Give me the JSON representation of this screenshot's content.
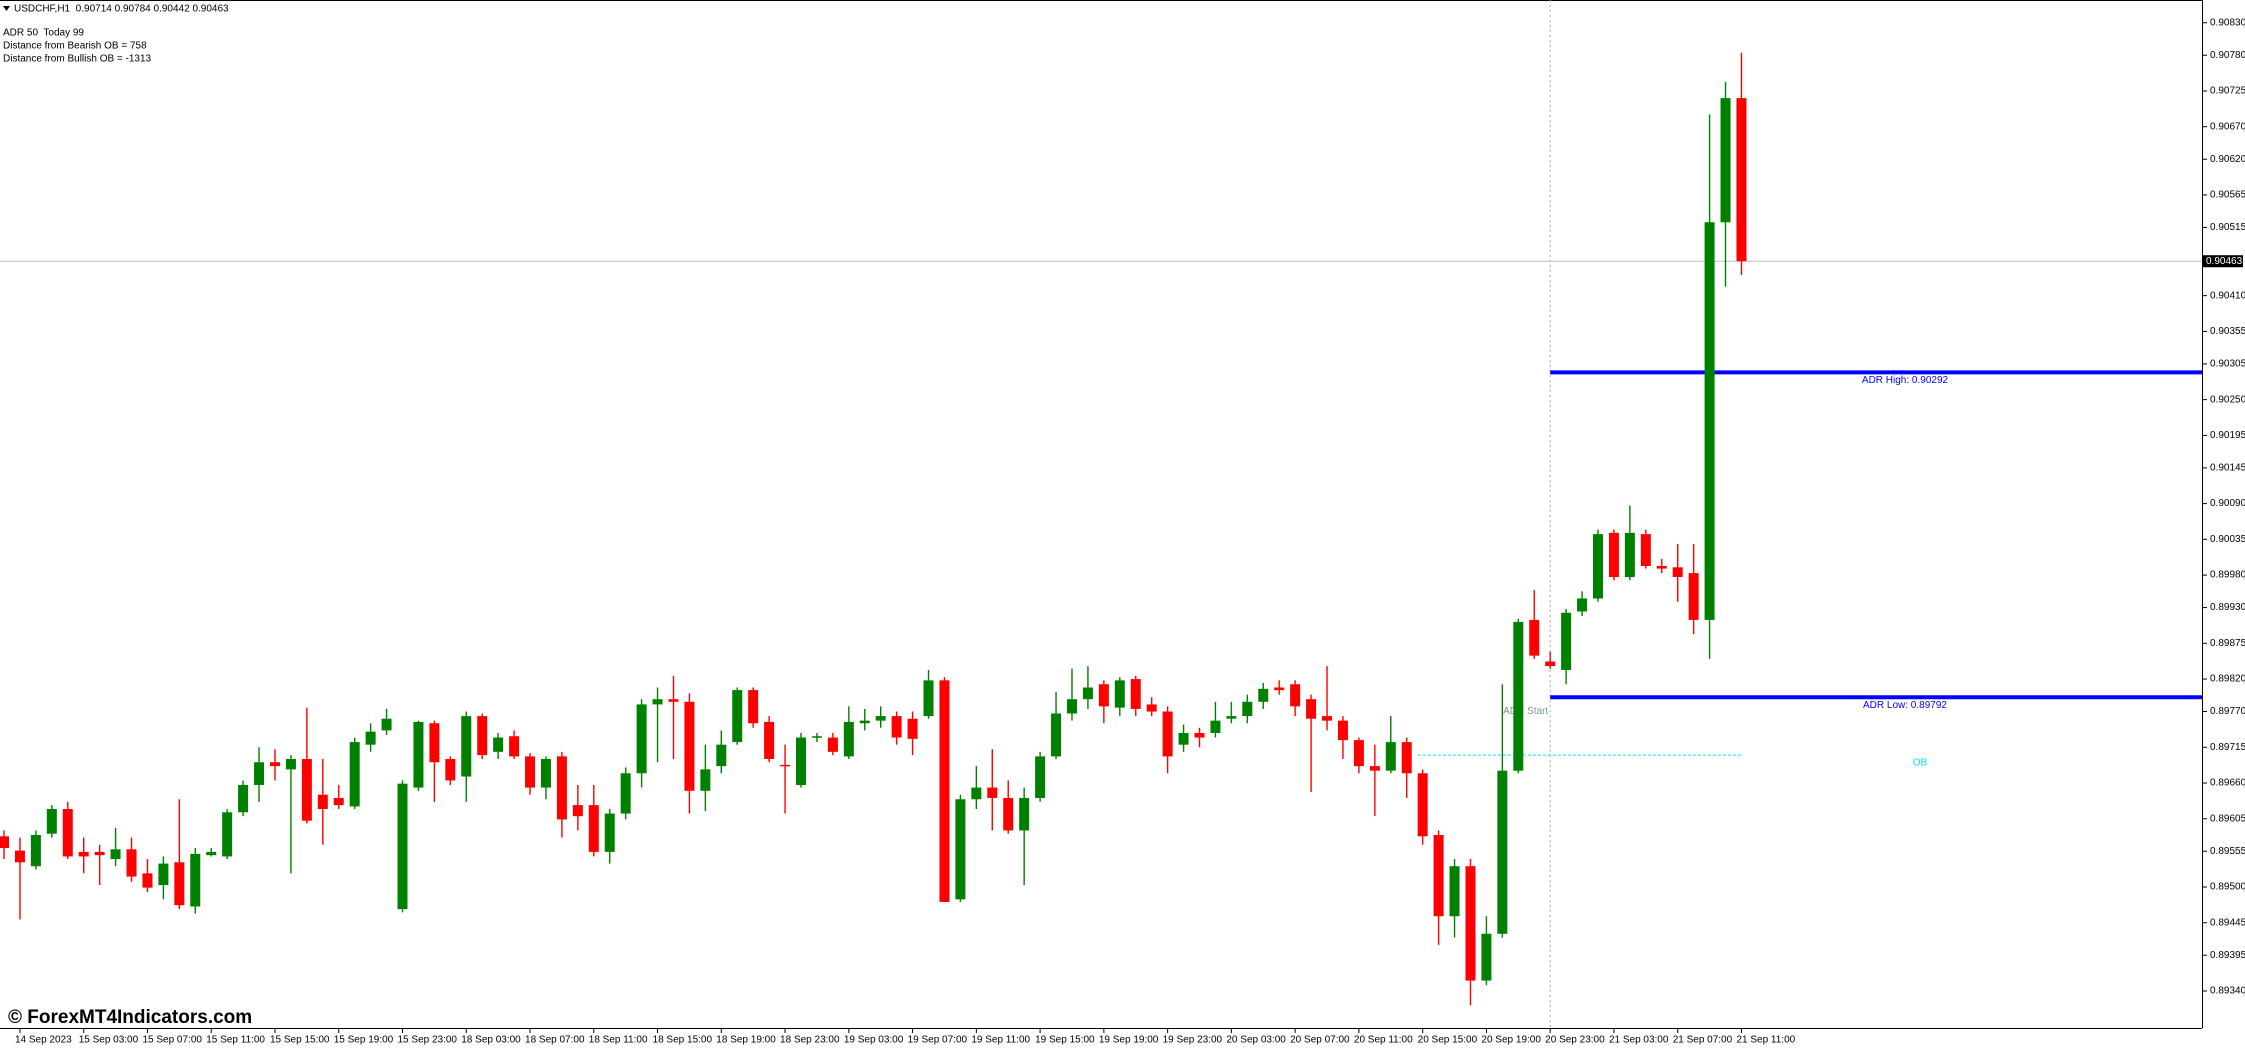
{
  "chart_data": {
    "type": "candlestick",
    "title": "USDCHF,H1  0.90714 0.90784 0.90442 0.90463",
    "annotations": [
      "ADR 50  Today 99",
      "Distance from Bearish OB = 758",
      "Distance from Bullish OB = -1313"
    ],
    "watermark": "© ForexMT4Indicators.com",
    "categories": [
      null,
      "14 Sep 2023",
      null,
      null,
      null,
      "15 Sep 03:00",
      null,
      null,
      null,
      "15 Sep 07:00",
      null,
      null,
      null,
      "15 Sep 11:00",
      null,
      null,
      null,
      "15 Sep 15:00",
      null,
      null,
      null,
      "15 Sep 19:00",
      null,
      null,
      null,
      "15 Sep 23:00",
      null,
      null,
      null,
      "18 Sep 03:00",
      null,
      null,
      null,
      "18 Sep 07:00",
      null,
      null,
      null,
      "18 Sep 11:00",
      null,
      null,
      null,
      "18 Sep 15:00",
      null,
      null,
      null,
      "18 Sep 19:00",
      null,
      null,
      null,
      "18 Sep 23:00",
      null,
      null,
      null,
      "19 Sep 03:00",
      null,
      null,
      null,
      "19 Sep 07:00",
      null,
      null,
      null,
      "19 Sep 11:00",
      null,
      null,
      null,
      "19 Sep 15:00",
      null,
      null,
      null,
      "19 Sep 19:00",
      null,
      null,
      null,
      "19 Sep 23:00",
      null,
      null,
      null,
      "20 Sep 03:00",
      null,
      null,
      null,
      "20 Sep 07:00",
      null,
      null,
      null,
      "20 Sep 11:00",
      null,
      null,
      null,
      "20 Sep 15:00",
      null,
      null,
      null,
      "20 Sep 19:00",
      null,
      null,
      null,
      "20 Sep 23:00",
      null,
      null,
      null,
      "21 Sep 03:00",
      null,
      null,
      null,
      "21 Sep 07:00",
      null,
      null,
      null,
      "21 Sep 11:00"
    ],
    "open": [
      0.89578,
      0.89556,
      0.89532,
      0.89582,
      0.8962,
      0.89554,
      0.89554,
      0.89543,
      0.89558,
      0.89521,
      0.89503,
      0.89538,
      0.8947,
      0.89549,
      0.89547,
      0.89615,
      0.89657,
      0.89692,
      0.89681,
      0.89697,
      0.89642,
      0.89637,
      0.89624,
      0.89719,
      0.89741,
      0.89466,
      0.89653,
      0.89752,
      0.89697,
      0.8967,
      0.89763,
      0.89708,
      0.89732,
      0.89701,
      0.89653,
      0.89701,
      0.89626,
      0.89626,
      0.89554,
      0.89613,
      0.89675,
      0.89781,
      0.89789,
      0.89785,
      0.89648,
      0.89686,
      0.89723,
      0.89803,
      0.89754,
      0.89688,
      0.89657,
      0.8973,
      0.8973,
      0.89701,
      0.89752,
      0.89756,
      0.89763,
      0.89759,
      0.89763,
      0.89818,
      0.89481,
      0.89635,
      0.89653,
      0.89637,
      0.89587,
      0.89637,
      0.89701,
      0.89767,
      0.89789,
      0.89812,
      0.89776,
      0.8982,
      0.89781,
      0.8977,
      0.89719,
      0.89737,
      0.89737,
      0.89759,
      0.89763,
      0.89785,
      0.89807,
      0.89812,
      0.89789,
      0.89763,
      0.89756,
      0.89726,
      0.89686,
      0.89679,
      0.89723,
      0.89675,
      0.8958,
      0.89455,
      0.89532,
      0.89356,
      0.89428,
      0.89679,
      0.89911,
      0.89847,
      0.89834,
      0.89924,
      0.89944,
      0.90045,
      0.89977,
      0.90043,
      0.89994,
      0.89992,
      0.89983,
      0.89911,
      0.90523,
      0.90714
    ],
    "high": [
      0.89587,
      0.89576,
      0.89587,
      0.89626,
      0.89631,
      0.89576,
      0.89565,
      0.89591,
      0.89576,
      0.89543,
      0.89547,
      0.89635,
      0.8956,
      0.8956,
      0.8962,
      0.89664,
      0.89715,
      0.89712,
      0.89703,
      0.89776,
      0.89697,
      0.89657,
      0.8973,
      0.89752,
      0.89774,
      0.89664,
      0.89756,
      0.89756,
      0.89701,
      0.8977,
      0.89767,
      0.89737,
      0.89741,
      0.89706,
      0.89701,
      0.89708,
      0.89657,
      0.89657,
      0.8962,
      0.89684,
      0.89789,
      0.89807,
      0.89825,
      0.89798,
      0.89719,
      0.89741,
      0.89807,
      0.89807,
      0.89763,
      0.89719,
      0.89737,
      0.89737,
      0.89737,
      0.89778,
      0.89774,
      0.89778,
      0.8977,
      0.8977,
      0.89834,
      0.89823,
      0.89642,
      0.89686,
      0.89712,
      0.89664,
      0.89653,
      0.89708,
      0.898,
      0.89836,
      0.8984,
      0.89818,
      0.89823,
      0.89825,
      0.89792,
      0.89778,
      0.8975,
      0.89745,
      0.89785,
      0.89785,
      0.89796,
      0.89814,
      0.89818,
      0.89818,
      0.89796,
      0.8984,
      0.89763,
      0.8973,
      0.89719,
      0.89763,
      0.8973,
      0.89681,
      0.89587,
      0.89543,
      0.89543,
      0.89455,
      0.89812,
      0.89913,
      0.89957,
      0.89862,
      0.89928,
      0.89955,
      0.9005,
      0.9005,
      0.90087,
      0.9005,
      0.90005,
      0.90028,
      0.90028,
      0.90689,
      0.90739,
      0.90784
    ],
    "low": [
      0.89543,
      0.8945,
      0.89527,
      0.89576,
      0.89543,
      0.89521,
      0.89503,
      0.89532,
      0.89508,
      0.89492,
      0.89481,
      0.89466,
      0.89459,
      0.89547,
      0.89543,
      0.89609,
      0.89631,
      0.89664,
      0.89521,
      0.89598,
      0.89565,
      0.8962,
      0.8962,
      0.89708,
      0.89734,
      0.89461,
      0.89648,
      0.89631,
      0.89657,
      0.89631,
      0.89697,
      0.89697,
      0.89697,
      0.89642,
      0.89635,
      0.89576,
      0.89587,
      0.89547,
      0.89536,
      0.89604,
      0.89653,
      0.89692,
      0.89697,
      0.89613,
      0.89617,
      0.89675,
      0.89719,
      0.89745,
      0.89692,
      0.89613,
      0.89653,
      0.89723,
      0.89703,
      0.89697,
      0.89741,
      0.89745,
      0.89719,
      0.89703,
      0.89759,
      0.89477,
      0.89477,
      0.8962,
      0.89587,
      0.89582,
      0.89503,
      0.89631,
      0.89697,
      0.89756,
      0.89774,
      0.89752,
      0.89763,
      0.89763,
      0.89763,
      0.89675,
      0.89708,
      0.89715,
      0.8973,
      0.89752,
      0.89752,
      0.89774,
      0.89796,
      0.89763,
      0.89646,
      0.89741,
      0.89697,
      0.89675,
      0.89609,
      0.89675,
      0.89637,
      0.89565,
      0.89411,
      0.89422,
      0.89318,
      0.89349,
      0.89422,
      0.89675,
      0.89851,
      0.89836,
      0.89812,
      0.89917,
      0.89939,
      0.89972,
      0.89972,
      0.8999,
      0.89983,
      0.89939,
      0.89889,
      0.89851,
      0.90424,
      0.90442
    ],
    "close": [
      0.8956,
      0.89538,
      0.8958,
      0.8962,
      0.89547,
      0.89547,
      0.89549,
      0.89558,
      0.89516,
      0.89499,
      0.89536,
      0.89472,
      0.89551,
      0.89554,
      0.89615,
      0.89657,
      0.89692,
      0.89686,
      0.89697,
      0.89602,
      0.8962,
      0.89626,
      0.89723,
      0.89739,
      0.89759,
      0.89659,
      0.89754,
      0.89692,
      0.89664,
      0.89763,
      0.89703,
      0.8973,
      0.89701,
      0.89653,
      0.89697,
      0.89604,
      0.89609,
      0.89554,
      0.89613,
      0.89675,
      0.89781,
      0.89789,
      0.89785,
      0.89648,
      0.89681,
      0.89719,
      0.89803,
      0.89752,
      0.89697,
      0.89686,
      0.8973,
      0.89732,
      0.89708,
      0.89754,
      0.89756,
      0.89763,
      0.8973,
      0.89728,
      0.89818,
      0.89477,
      0.89635,
      0.89653,
      0.89637,
      0.89587,
      0.89637,
      0.89701,
      0.89767,
      0.89789,
      0.89807,
      0.89778,
      0.89818,
      0.89774,
      0.8977,
      0.89701,
      0.89737,
      0.8973,
      0.89756,
      0.89763,
      0.89785,
      0.89805,
      0.89803,
      0.89778,
      0.89759,
      0.89756,
      0.89726,
      0.89686,
      0.89679,
      0.89723,
      0.89675,
      0.89578,
      0.89455,
      0.89532,
      0.89356,
      0.89428,
      0.89679,
      0.89908,
      0.89856,
      0.8984,
      0.89922,
      0.89944,
      0.90043,
      0.89977,
      0.90045,
      0.89994,
      0.8999,
      0.89977,
      0.89911,
      0.90523,
      0.90714,
      0.90463
    ],
    "up_color": "#008000",
    "down_color": "#ff0000",
    "ylim": [
      0.89283,
      0.90865
    ],
    "yticks": [
      {
        "value": 0.9083,
        "label": "0.90830"
      },
      {
        "value": 0.9078,
        "label": "0.90780"
      },
      0.90725,
      {
        "value": 0.9067,
        "label": "0.90670"
      },
      {
        "value": 0.9062,
        "label": "0.90620"
      },
      0.90565,
      0.90515,
      {
        "value": 0.9041,
        "label": "0.90410"
      },
      0.90355,
      0.90305,
      {
        "value": 0.9025,
        "label": "0.90250"
      },
      0.90195,
      0.90145,
      {
        "value": 0.9009,
        "label": "0.90090"
      },
      0.90035,
      {
        "value": 0.8998,
        "label": "0.89980"
      },
      {
        "value": 0.8993,
        "label": "0.89930"
      },
      0.89875,
      {
        "value": 0.8982,
        "label": "0.89820"
      },
      {
        "value": 0.8977,
        "label": "0.89770"
      },
      0.89715,
      {
        "value": 0.8966,
        "label": "0.89660"
      },
      0.89605,
      0.89555,
      {
        "value": 0.895,
        "label": "0.89500"
      },
      0.89445,
      0.89395,
      {
        "value": 0.8934,
        "label": "0.89340"
      }
    ],
    "grid": false,
    "last_price": 0.90463,
    "adr_start": "ADR Start",
    "levels": [
      {
        "label": "ADR High: 0.90292",
        "value": 0.90292,
        "color": "#0000ff"
      },
      {
        "label": "ADR Low: 0.89792",
        "value": 0.89792,
        "color": "#0000ff"
      }
    ],
    "ob": {
      "label": "OB",
      "value": 0.89703,
      "color": "#00e5e5"
    }
  }
}
